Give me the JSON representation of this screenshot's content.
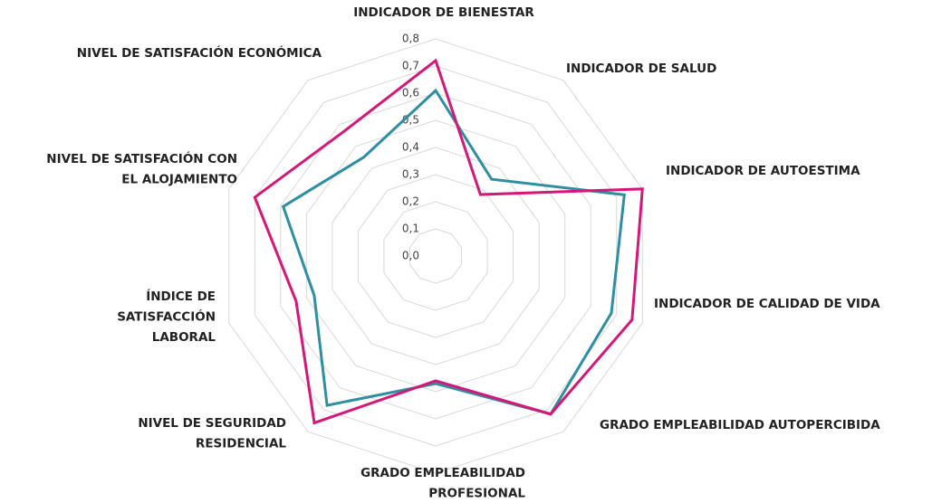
{
  "chart_data": {
    "type": "radar",
    "categories": [
      [
        "INDICADOR DE BIENESTAR"
      ],
      [
        "INDICADOR DE SALUD"
      ],
      [
        "INDICADOR DE AUTOESTIMA"
      ],
      [
        "INDICADOR DE CALIDAD DE VIDA"
      ],
      [
        "GRADO EMPLEABILIDAD AUTOPERCIBIDA"
      ],
      [
        "GRADO EMPLEABILIDAD",
        "PROFESIONAL"
      ],
      [
        "NIVEL DE SEGURIDAD",
        "RESIDENCIAL"
      ],
      [
        "ÍNDICE DE",
        "SATISFACCIÓN",
        "LABORAL"
      ],
      [
        "NIVEL DE SATISFACIÓN CON",
        "EL ALOJAMIENTO"
      ],
      [
        "NIVEL DE SATISFACIÓN ECONÓMICA"
      ]
    ],
    "series": [
      {
        "color": "#2e8fa3",
        "values": [
          0.61,
          0.35,
          0.73,
          0.68,
          0.72,
          0.47,
          0.68,
          0.47,
          0.59,
          0.45
        ]
      },
      {
        "color": "#d6177a",
        "values": [
          0.72,
          0.28,
          0.8,
          0.76,
          0.72,
          0.46,
          0.76,
          0.54,
          0.7,
          0.57
        ]
      }
    ],
    "ylim": [
      0,
      0.8
    ],
    "yticks": [
      {
        "value": 0,
        "label": "0,0"
      },
      {
        "value": 0.1,
        "label": "0,1"
      },
      {
        "value": 0.2,
        "label": "0,2"
      },
      {
        "value": 0.3,
        "label": "0,3"
      },
      {
        "value": 0.4,
        "label": "0,4"
      },
      {
        "value": 0.5,
        "label": "0,5"
      },
      {
        "value": 0.6,
        "label": "0,6"
      },
      {
        "value": 0.7,
        "label": "0,7"
      },
      {
        "value": 0.8,
        "label": "0,8"
      }
    ],
    "grid": true
  }
}
